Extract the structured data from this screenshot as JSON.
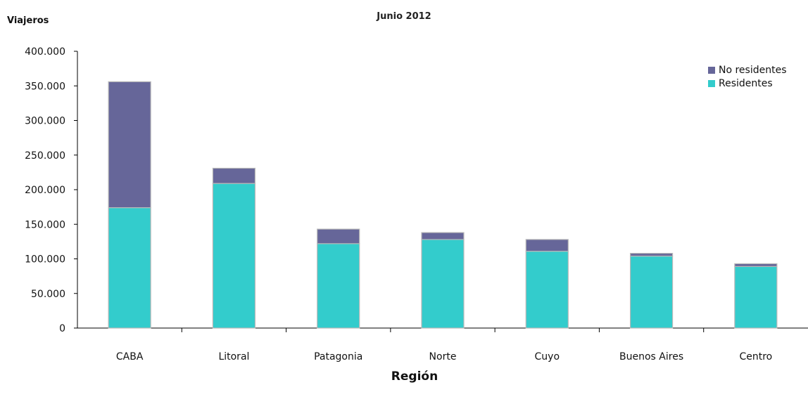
{
  "chart_data": {
    "type": "bar",
    "stacked": true,
    "title": "",
    "subtitle": "Junio 2012",
    "ylabel": "Viajeros",
    "xlabel": "Región",
    "ylim": [
      0,
      400000
    ],
    "yticks": [
      "0",
      "50.000",
      "100.000",
      "150.000",
      "200.000",
      "250.000",
      "300.000",
      "350.000",
      "400.000"
    ],
    "categories": [
      "CABA",
      "Litoral",
      "Patagonia",
      "Norte",
      "Cuyo",
      "Buenos Aires",
      "Centro"
    ],
    "series": [
      {
        "name": "Residentes",
        "color": "#33CCCC",
        "values": [
          174000,
          209000,
          122000,
          128000,
          111000,
          104000,
          89000
        ]
      },
      {
        "name": "No residentes",
        "color": "#666699",
        "values": [
          182000,
          22000,
          21000,
          10000,
          17000,
          4000,
          4000
        ]
      }
    ],
    "legend": {
      "position": "top-right",
      "order": [
        "No residentes",
        "Residentes"
      ]
    },
    "grid": false
  }
}
